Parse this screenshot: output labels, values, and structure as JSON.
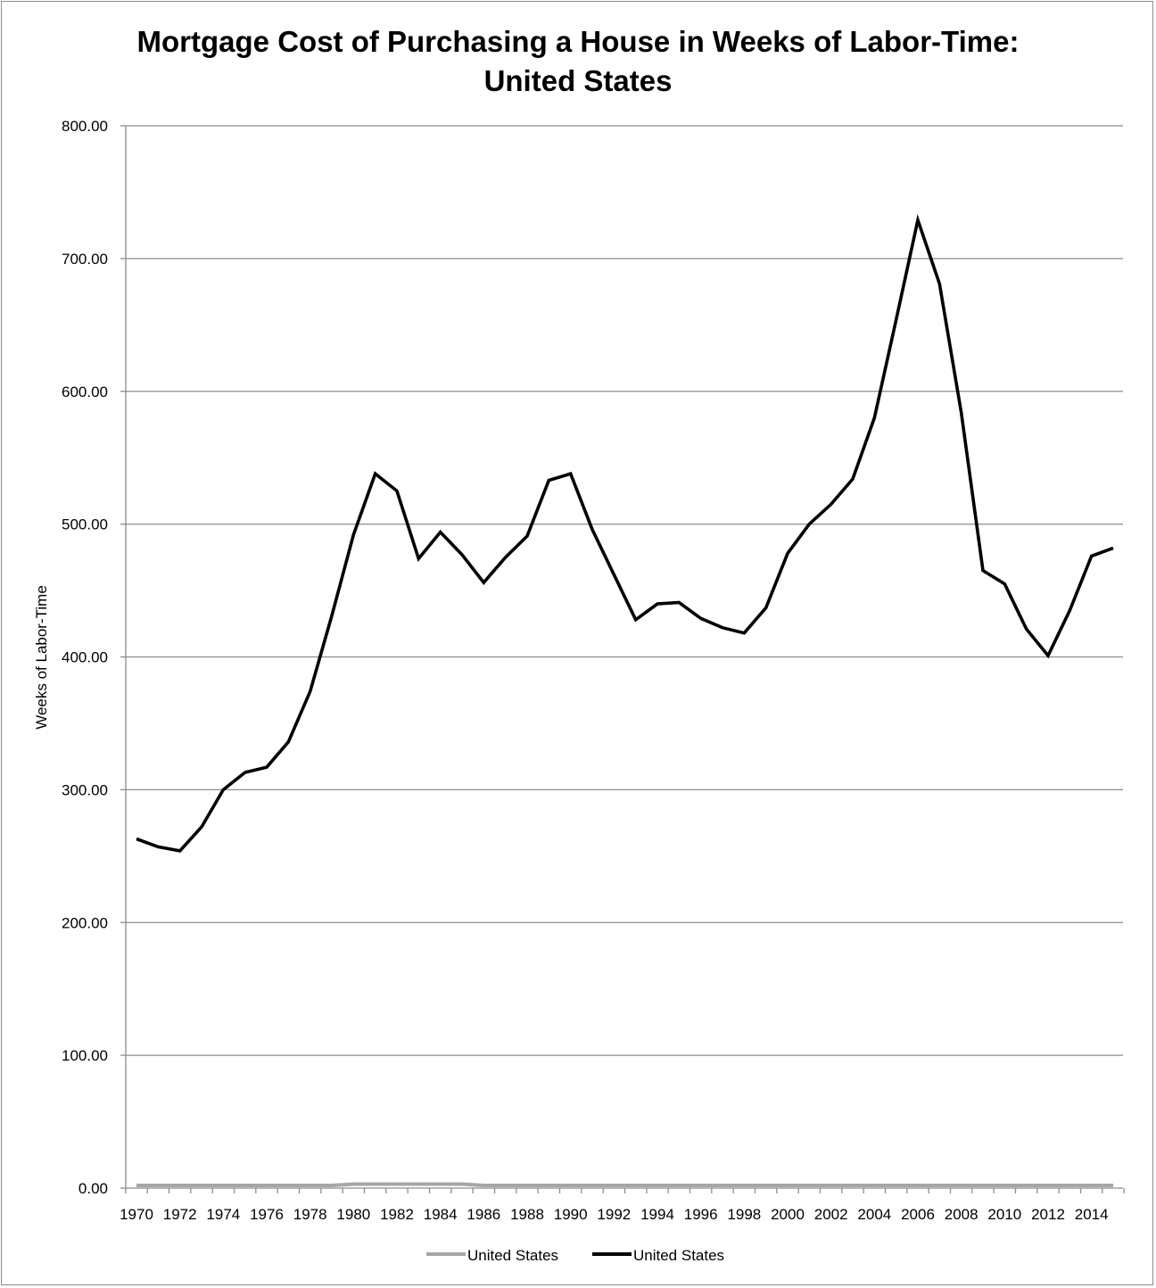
{
  "chart_data": {
    "type": "line",
    "title_line1": "Mortgage Cost of Purchasing a House in Weeks of Labor-Time:",
    "title_line2": "United States",
    "xlabel": "",
    "ylabel": "Weeks of Labor-Time",
    "ylim": [
      0,
      800
    ],
    "yticks": [
      "0.00",
      "100.00",
      "200.00",
      "300.00",
      "400.00",
      "500.00",
      "600.00",
      "700.00",
      "800.00"
    ],
    "xtick_labels": [
      "1970",
      "1972",
      "1974",
      "1976",
      "1978",
      "1980",
      "1982",
      "1984",
      "1986",
      "1988",
      "1990",
      "1992",
      "1994",
      "1996",
      "1998",
      "2000",
      "2002",
      "2004",
      "2006",
      "2008",
      "2010",
      "2012",
      "2014"
    ],
    "grid": true,
    "legend_position": "bottom",
    "x": [
      1970,
      1971,
      1972,
      1973,
      1974,
      1975,
      1976,
      1977,
      1978,
      1979,
      1980,
      1981,
      1982,
      1983,
      1984,
      1985,
      1986,
      1987,
      1988,
      1989,
      1990,
      1991,
      1992,
      1993,
      1994,
      1995,
      1996,
      1997,
      1998,
      1999,
      2000,
      2001,
      2002,
      2003,
      2004,
      2005,
      2006,
      2007,
      2008,
      2009,
      2010,
      2011,
      2012,
      2013,
      2014,
      2015
    ],
    "series": [
      {
        "name": "United States",
        "color": "#a6a6a6",
        "values": [
          2,
          2,
          2,
          2,
          2,
          2,
          2,
          2,
          2,
          2,
          3,
          3,
          3,
          3,
          3,
          3,
          2,
          2,
          2,
          2,
          2,
          2,
          2,
          2,
          2,
          2,
          2,
          2,
          2,
          2,
          2,
          2,
          2,
          2,
          2,
          2,
          2,
          2,
          2,
          2,
          2,
          2,
          2,
          2,
          2,
          2
        ]
      },
      {
        "name": "United States",
        "color": "#000000",
        "values": [
          263,
          257,
          254,
          272,
          300,
          313,
          317,
          336,
          374,
          431,
          492,
          538,
          525,
          474,
          494,
          477,
          456,
          475,
          491,
          533,
          538,
          496,
          462,
          428,
          440,
          441,
          429,
          422,
          418,
          437,
          478,
          500,
          515,
          534,
          580,
          654,
          729,
          681,
          584,
          465,
          455,
          421,
          401,
          435,
          476,
          482
        ]
      }
    ]
  }
}
